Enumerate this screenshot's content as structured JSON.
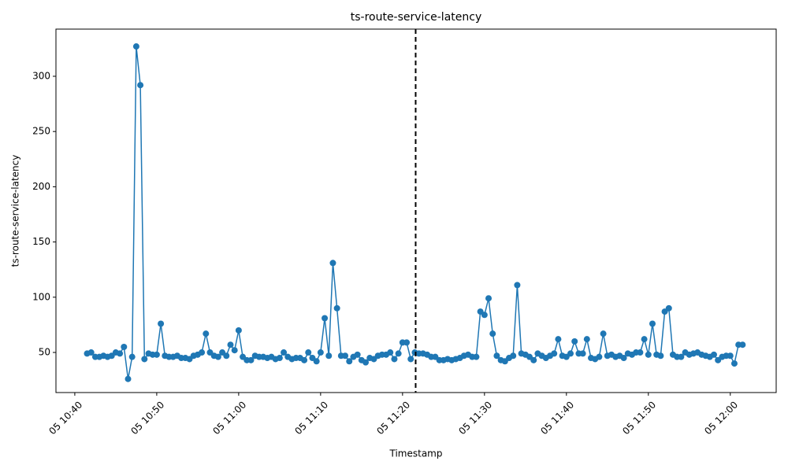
{
  "chart_data": {
    "type": "line",
    "title": "ts-route-service-latency",
    "x_label": "Timestamp",
    "y_label": "ts-route-service-latency",
    "color": "#1f77b4",
    "x": [
      41.5,
      42,
      42.5,
      43,
      43.5,
      44,
      44.5,
      45,
      45.5,
      46,
      46.5,
      47,
      47.5,
      48,
      48.5,
      49,
      49.5,
      50,
      50.5,
      51,
      51.5,
      52,
      52.5,
      53,
      53.5,
      54,
      54.5,
      55,
      55.5,
      56,
      56.5,
      57,
      57.5,
      58,
      58.5,
      59,
      59.5,
      60,
      60.5,
      61,
      61.5,
      62,
      62.5,
      63,
      63.5,
      64,
      64.5,
      65,
      65.5,
      66,
      66.5,
      67,
      67.5,
      68,
      68.5,
      69,
      69.5,
      70,
      70.5,
      71,
      71.5,
      72,
      72.5,
      73,
      73.5,
      74,
      74.5,
      75,
      75.5,
      76,
      76.5,
      77,
      77.5,
      78,
      78.5,
      79,
      79.5,
      80,
      80.5,
      81,
      81.5,
      82,
      82.5,
      83,
      83.5,
      84,
      84.5,
      85,
      85.5,
      86,
      86.5,
      87,
      87.5,
      88,
      88.5,
      89,
      89.5,
      90,
      90.5,
      91,
      91.5,
      92,
      92.5,
      93,
      93.5,
      94,
      94.5,
      95,
      95.5,
      96,
      96.5,
      97,
      97.5,
      98,
      98.5,
      99,
      99.5,
      100,
      100.5,
      101,
      101.5,
      102,
      102.5,
      103,
      103.5,
      104,
      104.5,
      105,
      105.5,
      106,
      106.5,
      107,
      107.5,
      108,
      108.5,
      109,
      109.5,
      110,
      110.5,
      111,
      111.5,
      112,
      112.5,
      113,
      113.5,
      114,
      114.5,
      115,
      115.5,
      116,
      116.5,
      117,
      117.5,
      118,
      118.5,
      119,
      119.5,
      120,
      120.5,
      121,
      121.5
    ],
    "values": [
      49,
      50,
      46,
      46,
      47,
      46,
      47,
      50,
      49,
      55,
      26,
      46,
      327,
      292,
      44,
      49,
      48,
      48,
      76,
      47,
      46,
      46,
      47,
      45,
      45,
      44,
      47,
      48,
      50,
      67,
      50,
      47,
      46,
      50,
      47,
      57,
      52,
      70,
      46,
      43,
      43,
      47,
      46,
      46,
      45,
      46,
      44,
      45,
      50,
      46,
      44,
      45,
      45,
      43,
      50,
      45,
      42,
      50,
      81,
      47,
      131,
      90,
      47,
      47,
      42,
      46,
      48,
      43,
      41,
      45,
      44,
      47,
      48,
      48,
      50,
      44,
      49,
      59,
      59,
      44,
      50,
      49,
      49,
      48,
      46,
      46,
      43,
      43,
      44,
      43,
      44,
      45,
      47,
      48,
      46,
      46,
      87,
      84,
      99,
      67,
      47,
      43,
      42,
      45,
      47,
      111,
      49,
      48,
      46,
      43,
      49,
      47,
      45,
      47,
      49,
      62,
      47,
      46,
      49,
      60,
      49,
      49,
      62,
      45,
      44,
      46,
      67,
      47,
      48,
      46,
      47,
      45,
      49,
      48,
      50,
      50,
      62,
      48,
      76,
      48,
      47,
      87,
      90,
      48,
      46,
      46,
      50,
      48,
      49,
      50,
      48,
      47,
      46,
      48,
      43,
      46,
      47,
      47,
      40,
      57,
      57
    ],
    "vline": 81.6,
    "vline_color": "#000000",
    "xlim": [
      37.7,
      125.6
    ],
    "xticks": [
      {
        "value": 40,
        "label": "05 10:40"
      },
      {
        "value": 50,
        "label": "05 10:50"
      },
      {
        "value": 60,
        "label": "05 11:00"
      },
      {
        "value": 70,
        "label": "05 11:10"
      },
      {
        "value": 80,
        "label": "05 11:20"
      },
      {
        "value": 90,
        "label": "05 11:30"
      },
      {
        "value": 100,
        "label": "05 11:40"
      },
      {
        "value": 110,
        "label": "05 11:50"
      },
      {
        "value": 120,
        "label": "05 12:00"
      }
    ],
    "ylim": [
      13.7,
      342.7
    ],
    "yticks": [
      50,
      100,
      150,
      200,
      250,
      300
    ],
    "grid": false
  }
}
